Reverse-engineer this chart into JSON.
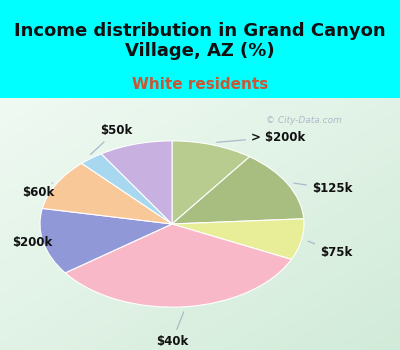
{
  "title": "Income distribution in Grand Canyon\nVillage, AZ (%)",
  "subtitle": "White residents",
  "title_fontsize": 13,
  "subtitle_fontsize": 11,
  "bg_top": "#00FFFF",
  "bg_chart_tl": "#e8f5f0",
  "bg_chart_br": "#d0e8d8",
  "slices": [
    {
      "label": "> $200k",
      "value": 10,
      "color": "#b8cc90"
    },
    {
      "label": "$125k",
      "value": 14,
      "color": "#a8be80"
    },
    {
      "label": "$75k",
      "value": 8,
      "color": "#e8ee98"
    },
    {
      "label": "$40k",
      "value": 33,
      "color": "#f8b8c8"
    },
    {
      "label": "$200k",
      "value": 13,
      "color": "#9098d8"
    },
    {
      "label": "$60k",
      "value": 10,
      "color": "#f8c898"
    },
    {
      "label": "$50k",
      "value": 3,
      "color": "#a8d8f0"
    },
    {
      "label": "$50k_p",
      "value": 9,
      "color": "#c8b0e0"
    }
  ],
  "label_texts": [
    "> $200k",
    "$125k",
    "$75k",
    "$40k",
    "$200k",
    "$60k",
    "$50k",
    ""
  ],
  "watermark": "© City-Data.com"
}
